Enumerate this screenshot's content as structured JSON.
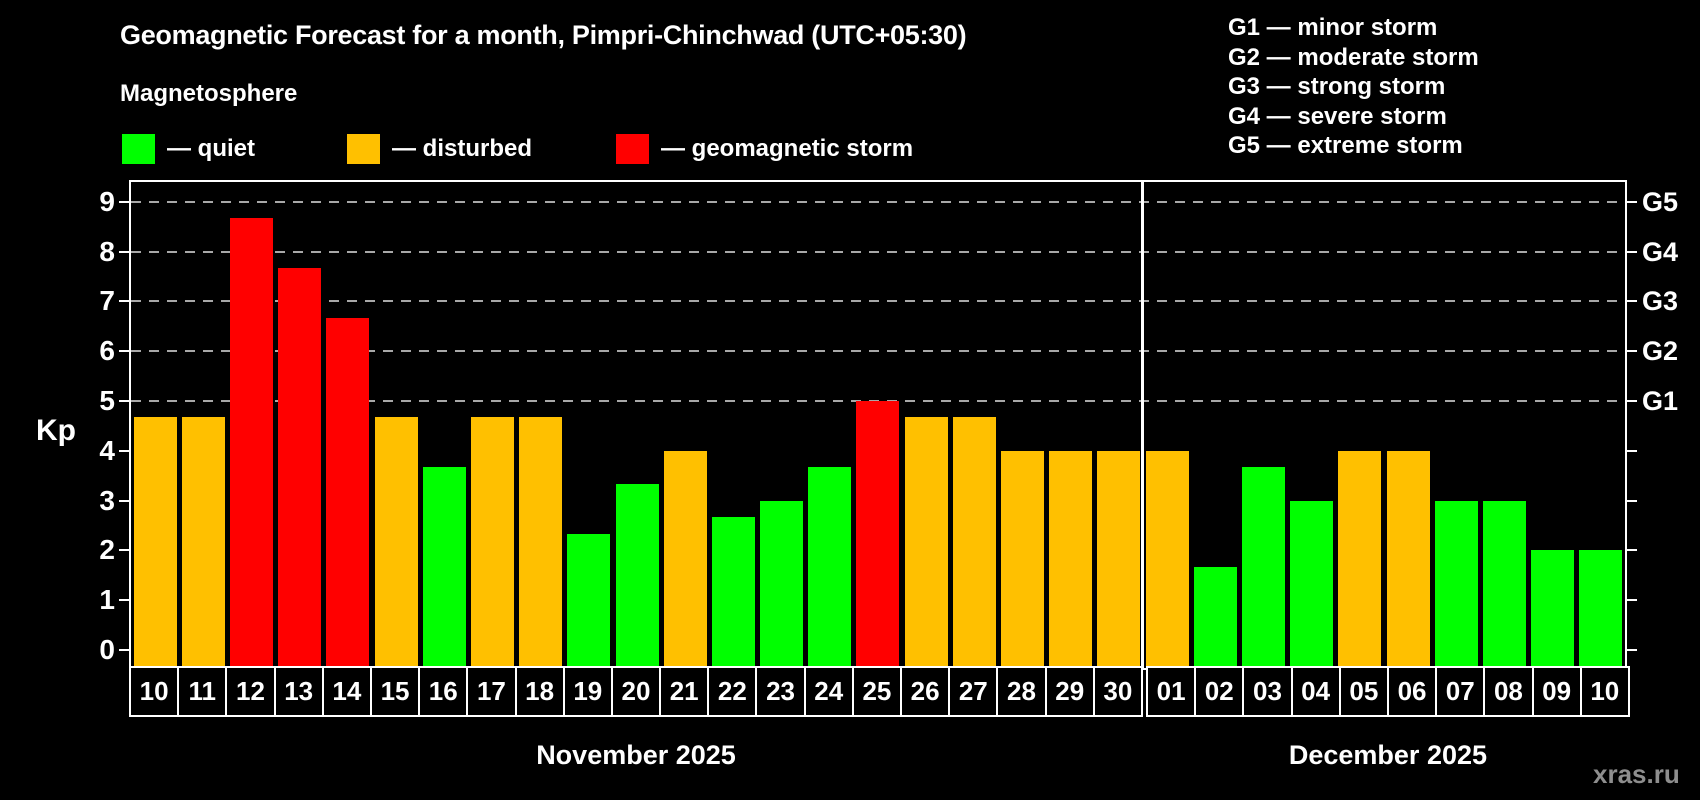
{
  "header": {
    "title": "Geomagnetic Forecast for a month, Pimpri-Chinchwad (UTC+05:30)",
    "subtitle": "Magnetosphere",
    "legend": [
      {
        "label": "— quiet",
        "level": "quiet"
      },
      {
        "label": "— disturbed",
        "level": "disturbed"
      },
      {
        "label": "— geomagnetic storm",
        "level": "storm"
      }
    ],
    "g_scale": [
      "G1 — minor storm",
      "G2 — moderate storm",
      "G3 — strong storm",
      "G4 — severe storm",
      "G5 — extreme storm"
    ]
  },
  "watermark": "xras.ru",
  "chart_data": {
    "type": "bar",
    "ylabel": "Kp",
    "ylim": [
      0,
      9.4
    ],
    "y_ticks": [
      0,
      1,
      2,
      3,
      4,
      5,
      6,
      7,
      8,
      9
    ],
    "grid": "dashed horizontal lines at G-storm levels only",
    "g_levels": [
      {
        "kp": 5,
        "label": "G1"
      },
      {
        "kp": 6,
        "label": "G2"
      },
      {
        "kp": 7,
        "label": "G3"
      },
      {
        "kp": 8,
        "label": "G4"
      },
      {
        "kp": 9,
        "label": "G5"
      }
    ],
    "colors": {
      "quiet": "#00ff00",
      "disturbed": "#ffc000",
      "storm": "#ff0000",
      "background": "#000000",
      "axis": "#ffffff",
      "gridline": "#a8a8a8"
    },
    "months": [
      {
        "label": "November 2025",
        "days": [
          {
            "date": "10",
            "kp": 4.67,
            "level": "disturbed"
          },
          {
            "date": "11",
            "kp": 4.67,
            "level": "disturbed"
          },
          {
            "date": "12",
            "kp": 8.67,
            "level": "storm"
          },
          {
            "date": "13",
            "kp": 7.67,
            "level": "storm"
          },
          {
            "date": "14",
            "kp": 6.67,
            "level": "storm"
          },
          {
            "date": "15",
            "kp": 4.67,
            "level": "disturbed"
          },
          {
            "date": "16",
            "kp": 3.67,
            "level": "quiet"
          },
          {
            "date": "17",
            "kp": 4.67,
            "level": "disturbed"
          },
          {
            "date": "18",
            "kp": 4.67,
            "level": "disturbed"
          },
          {
            "date": "19",
            "kp": 2.33,
            "level": "quiet"
          },
          {
            "date": "20",
            "kp": 3.33,
            "level": "quiet"
          },
          {
            "date": "21",
            "kp": 4.0,
            "level": "disturbed"
          },
          {
            "date": "22",
            "kp": 2.67,
            "level": "quiet"
          },
          {
            "date": "23",
            "kp": 3.0,
            "level": "quiet"
          },
          {
            "date": "24",
            "kp": 3.67,
            "level": "quiet"
          },
          {
            "date": "25",
            "kp": 5.0,
            "level": "storm"
          },
          {
            "date": "26",
            "kp": 4.67,
            "level": "disturbed"
          },
          {
            "date": "27",
            "kp": 4.67,
            "level": "disturbed"
          },
          {
            "date": "28",
            "kp": 4.0,
            "level": "disturbed"
          },
          {
            "date": "29",
            "kp": 4.0,
            "level": "disturbed"
          },
          {
            "date": "30",
            "kp": 4.0,
            "level": "disturbed"
          }
        ]
      },
      {
        "label": "December 2025",
        "days": [
          {
            "date": "01",
            "kp": 4.0,
            "level": "disturbed"
          },
          {
            "date": "02",
            "kp": 1.67,
            "level": "quiet"
          },
          {
            "date": "03",
            "kp": 3.67,
            "level": "quiet"
          },
          {
            "date": "04",
            "kp": 3.0,
            "level": "quiet"
          },
          {
            "date": "05",
            "kp": 4.0,
            "level": "disturbed"
          },
          {
            "date": "06",
            "kp": 4.0,
            "level": "disturbed"
          },
          {
            "date": "07",
            "kp": 3.0,
            "level": "quiet"
          },
          {
            "date": "08",
            "kp": 3.0,
            "level": "quiet"
          },
          {
            "date": "09",
            "kp": 2.0,
            "level": "quiet"
          },
          {
            "date": "10",
            "kp": 2.0,
            "level": "quiet"
          }
        ]
      }
    ]
  }
}
